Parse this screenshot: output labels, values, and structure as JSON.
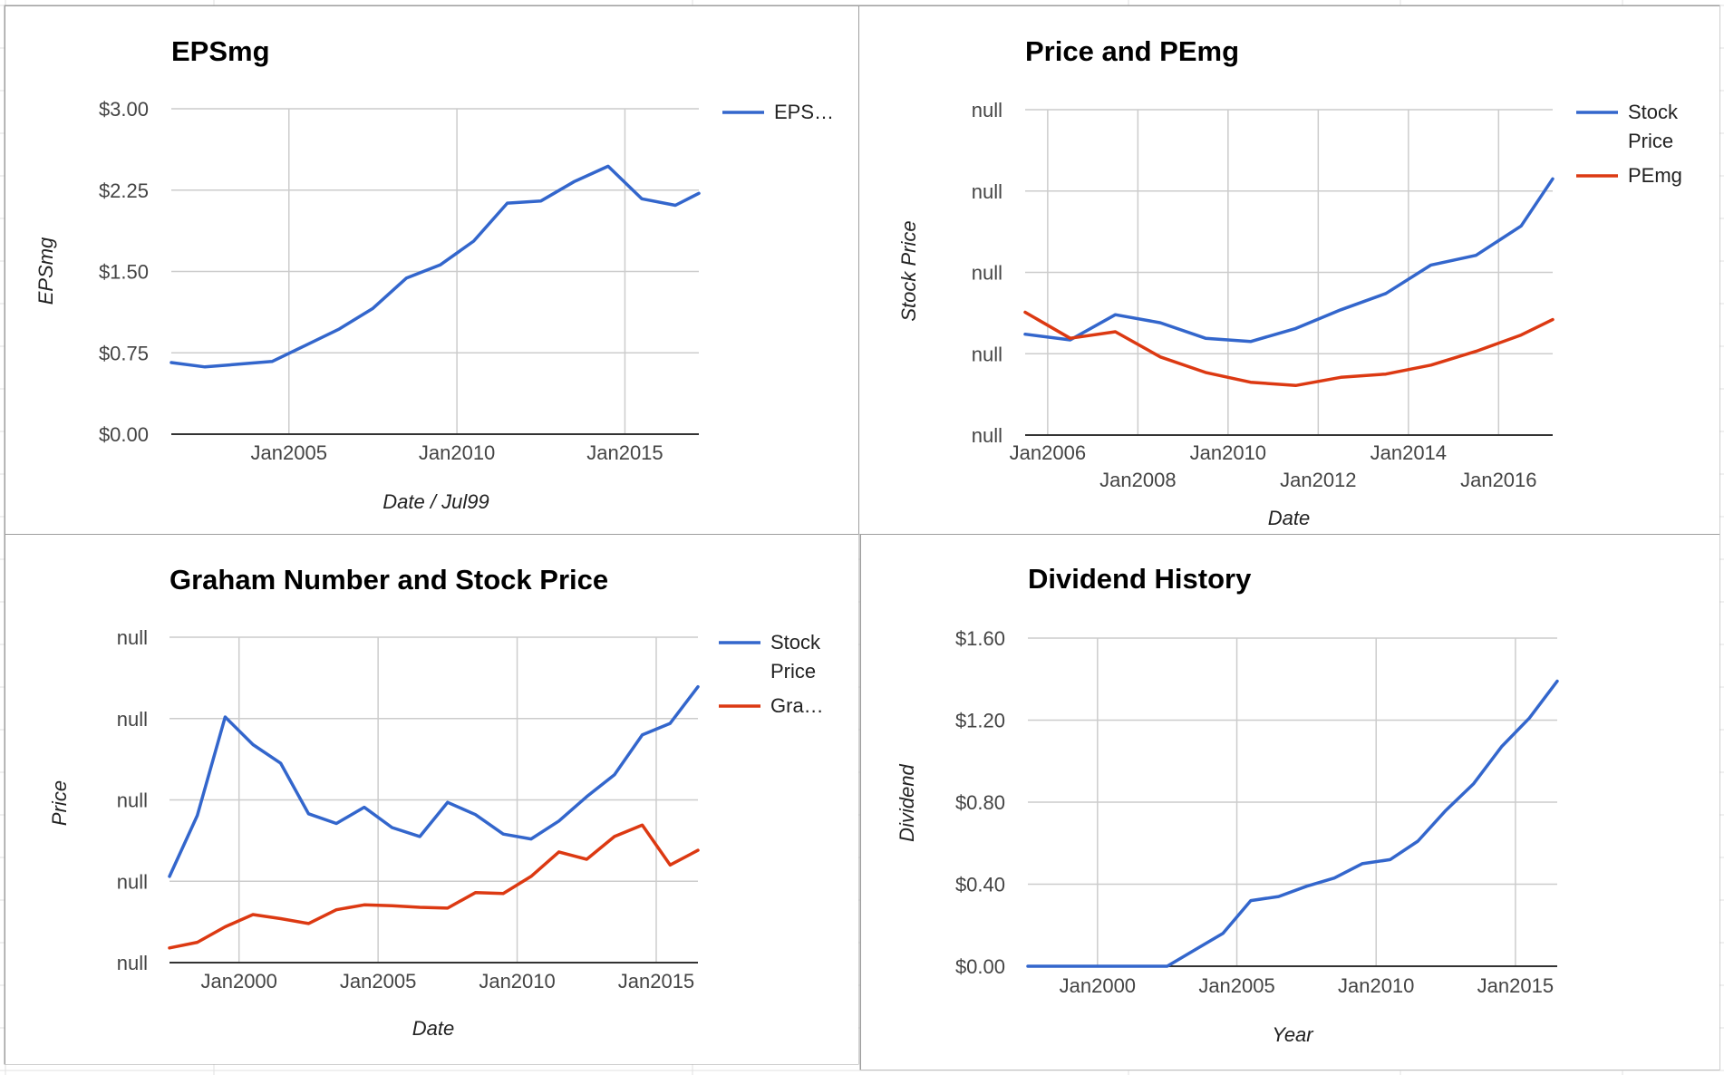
{
  "colors": {
    "series_blue": "#3366cc",
    "series_red": "#dc3912",
    "grid": "#cccccc",
    "baseline": "#333333",
    "panel_border": "#9e9e9e",
    "sheet_grid": "#e2e2e2"
  },
  "chart_data": [
    {
      "id": "epsmg",
      "type": "line",
      "title": "EPSmg",
      "xlabel": "Date / Jul99",
      "ylabel": "EPSmg",
      "ylim": [
        0,
        3
      ],
      "y_ticks": [
        0,
        0.75,
        1.5,
        2.25,
        3
      ],
      "y_tick_labels": [
        "$0.00",
        "$0.75",
        "$1.50",
        "$2.25",
        "$3.00"
      ],
      "xlim": [
        2001.5,
        2017.2
      ],
      "x_tick_labels": [
        {
          "x": 2005.0,
          "label": "Jan2005",
          "row": 0
        },
        {
          "x": 2010.0,
          "label": "Jan2010",
          "row": 0
        },
        {
          "x": 2015.0,
          "label": "Jan2015",
          "row": 0
        }
      ],
      "x_grid": [
        2005.0,
        2010.0,
        2015.0
      ],
      "grid": true,
      "legend_position": "right",
      "series": [
        {
          "name": "EPS…",
          "legend_lines": [
            "EPS…"
          ],
          "color": "#3366cc",
          "points": [
            [
              2001.5,
              0.66
            ],
            [
              2002.5,
              0.62
            ],
            [
              2003.5,
              0.645
            ],
            [
              2004.5,
              0.67
            ],
            [
              2005.5,
              0.82
            ],
            [
              2006.5,
              0.97
            ],
            [
              2007.5,
              1.16
            ],
            [
              2008.5,
              1.44
            ],
            [
              2009.5,
              1.56
            ],
            [
              2010.5,
              1.78
            ],
            [
              2011.5,
              2.13
            ],
            [
              2012.5,
              2.15
            ],
            [
              2013.5,
              2.33
            ],
            [
              2014.5,
              2.47
            ],
            [
              2015.5,
              2.17
            ],
            [
              2016.5,
              2.11
            ],
            [
              2017.2,
              2.22
            ]
          ]
        }
      ]
    },
    {
      "id": "price_pemg",
      "type": "line",
      "title": "Price and PEmg",
      "xlabel": "Date",
      "ylabel": "Stock Price",
      "ylim": [
        0,
        4
      ],
      "y_ticks": [
        0,
        1,
        2,
        3,
        4
      ],
      "y_tick_labels": [
        "null",
        "null",
        "null",
        "null",
        "null"
      ],
      "xlim": [
        2005.5,
        2017.2
      ],
      "x_tick_labels": [
        {
          "x": 2006.0,
          "label": "Jan2006",
          "row": 0
        },
        {
          "x": 2008.0,
          "label": "Jan2008",
          "row": 1
        },
        {
          "x": 2010.0,
          "label": "Jan2010",
          "row": 0
        },
        {
          "x": 2012.0,
          "label": "Jan2012",
          "row": 1
        },
        {
          "x": 2014.0,
          "label": "Jan2014",
          "row": 0
        },
        {
          "x": 2016.0,
          "label": "Jan2016",
          "row": 1
        }
      ],
      "x_grid": [
        2006.0,
        2008.0,
        2010.0,
        2012.0,
        2014.0,
        2016.0
      ],
      "grid": true,
      "legend_position": "right",
      "series": [
        {
          "name": "Stock Price",
          "legend_lines": [
            "Stock",
            "Price"
          ],
          "color": "#3366cc",
          "points": [
            [
              2005.5,
              1.24
            ],
            [
              2006.5,
              1.17
            ],
            [
              2007.5,
              1.48
            ],
            [
              2008.5,
              1.38
            ],
            [
              2009.5,
              1.19
            ],
            [
              2010.5,
              1.15
            ],
            [
              2011.5,
              1.31
            ],
            [
              2012.5,
              1.54
            ],
            [
              2013.5,
              1.74
            ],
            [
              2014.5,
              2.09
            ],
            [
              2015.5,
              2.21
            ],
            [
              2016.5,
              2.57
            ],
            [
              2017.2,
              3.15
            ]
          ]
        },
        {
          "name": "PEmg",
          "legend_lines": [
            "PEmg"
          ],
          "color": "#dc3912",
          "points": [
            [
              2005.5,
              1.51
            ],
            [
              2006.5,
              1.19
            ],
            [
              2007.5,
              1.27
            ],
            [
              2008.5,
              0.96
            ],
            [
              2009.5,
              0.77
            ],
            [
              2010.5,
              0.65
            ],
            [
              2011.5,
              0.61
            ],
            [
              2012.5,
              0.71
            ],
            [
              2013.5,
              0.75
            ],
            [
              2014.5,
              0.86
            ],
            [
              2015.5,
              1.03
            ],
            [
              2016.5,
              1.23
            ],
            [
              2017.2,
              1.42
            ]
          ]
        }
      ]
    },
    {
      "id": "graham",
      "type": "line",
      "title": "Graham Number and Stock Price",
      "xlabel": "Date",
      "ylabel": "Price",
      "ylim": [
        0,
        4
      ],
      "y_ticks": [
        0,
        1,
        2,
        3,
        4
      ],
      "y_tick_labels": [
        "null",
        "null",
        "null",
        "null",
        "null"
      ],
      "xlim": [
        1997.5,
        2016.5
      ],
      "x_tick_labels": [
        {
          "x": 2000.0,
          "label": "Jan2000",
          "row": 0
        },
        {
          "x": 2005.0,
          "label": "Jan2005",
          "row": 0
        },
        {
          "x": 2010.0,
          "label": "Jan2010",
          "row": 0
        },
        {
          "x": 2015.0,
          "label": "Jan2015",
          "row": 0
        }
      ],
      "x_grid": [
        2000.0,
        2005.0,
        2010.0,
        2015.0
      ],
      "grid": true,
      "legend_position": "right",
      "series": [
        {
          "name": "Stock Price",
          "legend_lines": [
            "Stock",
            "Price"
          ],
          "color": "#3366cc",
          "points": [
            [
              1997.5,
              1.06
            ],
            [
              1998.5,
              1.81
            ],
            [
              1999.5,
              3.02
            ],
            [
              2000.5,
              2.68
            ],
            [
              2001.5,
              2.45
            ],
            [
              2002.5,
              1.83
            ],
            [
              2003.5,
              1.71
            ],
            [
              2004.5,
              1.91
            ],
            [
              2005.5,
              1.66
            ],
            [
              2006.5,
              1.55
            ],
            [
              2007.5,
              1.97
            ],
            [
              2008.5,
              1.82
            ],
            [
              2009.5,
              1.58
            ],
            [
              2010.5,
              1.52
            ],
            [
              2011.5,
              1.74
            ],
            [
              2012.5,
              2.04
            ],
            [
              2013.5,
              2.31
            ],
            [
              2014.5,
              2.8
            ],
            [
              2015.5,
              2.94
            ],
            [
              2016.5,
              3.39
            ]
          ]
        },
        {
          "name": "Gra…",
          "legend_lines": [
            "Gra…"
          ],
          "color": "#dc3912",
          "points": [
            [
              1997.5,
              0.18
            ],
            [
              1998.5,
              0.25
            ],
            [
              1999.5,
              0.44
            ],
            [
              2000.5,
              0.59
            ],
            [
              2001.5,
              0.54
            ],
            [
              2002.5,
              0.48
            ],
            [
              2003.5,
              0.65
            ],
            [
              2004.5,
              0.71
            ],
            [
              2005.5,
              0.7
            ],
            [
              2006.5,
              0.68
            ],
            [
              2007.5,
              0.67
            ],
            [
              2008.5,
              0.86
            ],
            [
              2009.5,
              0.85
            ],
            [
              2010.5,
              1.06
            ],
            [
              2011.5,
              1.36
            ],
            [
              2012.5,
              1.27
            ],
            [
              2013.5,
              1.55
            ],
            [
              2014.5,
              1.69
            ],
            [
              2015.5,
              1.2
            ],
            [
              2016.5,
              1.38
            ]
          ]
        }
      ]
    },
    {
      "id": "dividend",
      "type": "line",
      "title": "Dividend History",
      "xlabel": "Year",
      "ylabel": "Dividend",
      "ylim": [
        0,
        1.6
      ],
      "y_ticks": [
        0,
        0.4,
        0.8,
        1.2,
        1.6
      ],
      "y_tick_labels": [
        "$0.00",
        "$0.40",
        "$0.80",
        "$1.20",
        "$1.60"
      ],
      "xlim": [
        1997.5,
        2016.5
      ],
      "x_tick_labels": [
        {
          "x": 2000.0,
          "label": "Jan2000",
          "row": 0
        },
        {
          "x": 2005.0,
          "label": "Jan2005",
          "row": 0
        },
        {
          "x": 2010.0,
          "label": "Jan2010",
          "row": 0
        },
        {
          "x": 2015.0,
          "label": "Jan2015",
          "row": 0
        }
      ],
      "x_grid": [
        2000.0,
        2005.0,
        2010.0,
        2015.0
      ],
      "grid": true,
      "legend_position": "none",
      "series": [
        {
          "name": "",
          "legend_lines": [],
          "color": "#3366cc",
          "points": [
            [
              1997.5,
              0
            ],
            [
              1998.5,
              0
            ],
            [
              1999.5,
              0
            ],
            [
              2000.5,
              0
            ],
            [
              2001.5,
              0
            ],
            [
              2002.5,
              0
            ],
            [
              2003.5,
              0.08
            ],
            [
              2004.5,
              0.16
            ],
            [
              2005.5,
              0.32
            ],
            [
              2006.5,
              0.34
            ],
            [
              2007.5,
              0.39
            ],
            [
              2008.5,
              0.43
            ],
            [
              2009.5,
              0.5
            ],
            [
              2010.5,
              0.52
            ],
            [
              2011.5,
              0.61
            ],
            [
              2012.5,
              0.76
            ],
            [
              2013.5,
              0.89
            ],
            [
              2014.5,
              1.07
            ],
            [
              2015.5,
              1.21
            ],
            [
              2016.5,
              1.39
            ]
          ]
        }
      ]
    }
  ]
}
